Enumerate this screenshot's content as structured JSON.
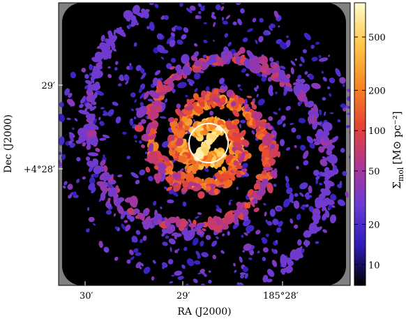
{
  "chart_data": {
    "type": "heatmap",
    "title": "",
    "xlabel": "RA (J2000)",
    "ylabel": "Dec (J2000)",
    "x_ticks": [
      "30′",
      "29′",
      "185°28′"
    ],
    "y_ticks": [
      "29′",
      "+4°28′"
    ],
    "colorbar": {
      "label_main": "Σ",
      "label_sub": "mol",
      "label_units": "[M⊙ pc⁻²]",
      "scale": "log",
      "range": [
        7,
        900
      ],
      "ticks": [
        10,
        20,
        50,
        100,
        200,
        500
      ],
      "tick_labels": [
        "10",
        "20",
        "50",
        "100",
        "200",
        "500"
      ],
      "colormap": [
        "#000000",
        "#2c1cb8",
        "#6a3bd6",
        "#b0358f",
        "#e8452f",
        "#f58b24",
        "#ffc84a",
        "#fffbd0"
      ]
    },
    "annotations": [
      {
        "kind": "circle",
        "color": "#ffffff",
        "description": "central region marker"
      }
    ],
    "background": {
      "data_region": "#000000",
      "outside_footprint": "#808080"
    },
    "grid": false
  }
}
